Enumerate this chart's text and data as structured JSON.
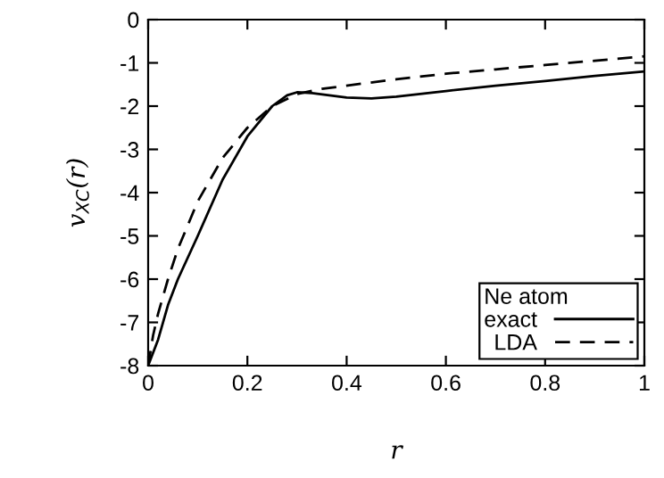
{
  "chart_data": {
    "type": "line",
    "xlabel": "r",
    "ylabel": "v$_{XC}$(r)",
    "legend_title": "Ne atom",
    "legend": "bottom right",
    "grid": false,
    "marker": "none",
    "xlim": [
      0,
      1
    ],
    "ylim": [
      -8,
      0
    ],
    "xticks": [
      0,
      0.2,
      0.4,
      0.6,
      0.8,
      1
    ],
    "yticks": [
      -8,
      -7,
      -6,
      -5,
      -4,
      -3,
      -2,
      -1,
      0
    ],
    "series": [
      {
        "name": "exact",
        "color": "#000000",
        "line_style": "solid",
        "x": [
          0,
          0.02,
          0.04,
          0.06,
          0.1,
          0.15,
          0.2,
          0.25,
          0.28,
          0.3,
          0.33,
          0.4,
          0.45,
          0.5,
          0.6,
          0.7,
          0.8,
          0.9,
          1
        ],
        "values": [
          -8,
          -7.4,
          -6.6,
          -6,
          -5,
          -3.7,
          -2.7,
          -2.0,
          -1.75,
          -1.68,
          -1.7,
          -1.8,
          -1.82,
          -1.78,
          -1.65,
          -1.53,
          -1.42,
          -1.3,
          -1.2
        ]
      },
      {
        "name": "LDA",
        "color": "#000000",
        "line_style": "dashed",
        "x": [
          0,
          0.01,
          0.02,
          0.04,
          0.06,
          0.1,
          0.15,
          0.2,
          0.25,
          0.3,
          0.35,
          0.5,
          0.6,
          0.7,
          0.8,
          0.9,
          1
        ],
        "values": [
          -8,
          -7.3,
          -6.8,
          -6.0,
          -5.3,
          -4.2,
          -3.2,
          -2.5,
          -2.0,
          -1.72,
          -1.6,
          -1.38,
          -1.25,
          -1.15,
          -1.05,
          -0.95,
          -0.85
        ]
      }
    ]
  }
}
